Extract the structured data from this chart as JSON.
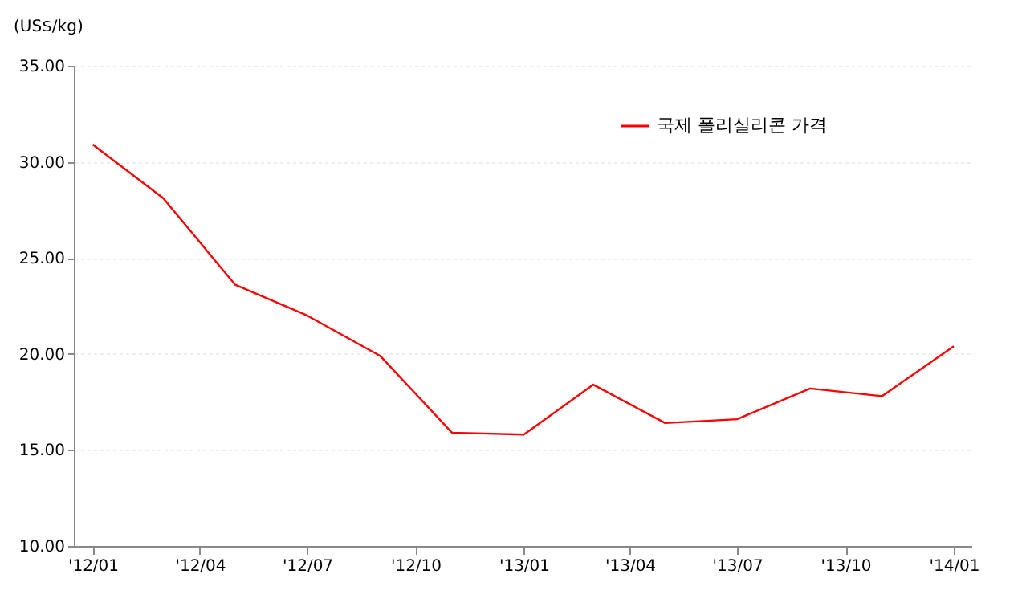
{
  "chart_data": {
    "type": "line",
    "ylabel": "(US$/kg)",
    "x": [
      "2012-01",
      "2012-03",
      "2012-05",
      "2012-07",
      "2012-09",
      "2012-11",
      "2013-01",
      "2013-03",
      "2013-05",
      "2013-07",
      "2013-09",
      "2013-11",
      "2014-01"
    ],
    "series": [
      {
        "name": "국제 폴리실리콘 가격",
        "color": "#ff0000",
        "values": [
          30.9,
          28.1,
          23.6,
          22.0,
          19.9,
          15.9,
          15.8,
          18.4,
          16.4,
          16.6,
          18.2,
          17.8,
          20.4
        ]
      }
    ],
    "xlim": [
      "2011-12-16",
      "2014-01-16"
    ],
    "xticks": [
      {
        "value": "2012-01",
        "label": "'12/01"
      },
      {
        "value": "2012-04",
        "label": "'12/04"
      },
      {
        "value": "2012-07",
        "label": "'12/07"
      },
      {
        "value": "2012-10",
        "label": "'12/10"
      },
      {
        "value": "2013-01",
        "label": "'13/01"
      },
      {
        "value": "2013-04",
        "label": "'13/04"
      },
      {
        "value": "2013-07",
        "label": "'13/07"
      },
      {
        "value": "2013-10",
        "label": "'13/10"
      },
      {
        "value": "2014-01",
        "label": "'14/01"
      }
    ],
    "ylim": [
      10,
      35
    ],
    "yticks": [
      {
        "value": 10,
        "label": "10.00"
      },
      {
        "value": 15,
        "label": "15.00"
      },
      {
        "value": 20,
        "label": "20.00"
      },
      {
        "value": 25,
        "label": "25.00"
      },
      {
        "value": 30,
        "label": "30.00"
      },
      {
        "value": 35,
        "label": "35.00"
      }
    ],
    "grid": "y",
    "legend": "top right",
    "line_style": "solid",
    "marker": "none"
  }
}
